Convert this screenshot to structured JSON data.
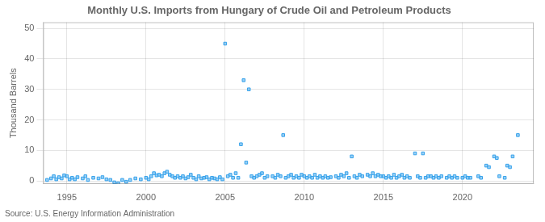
{
  "chart_data": {
    "type": "scatter",
    "title": "Monthly U.S. Imports from Hungary of Crude Oil and Petroleum Products",
    "ylabel": "Thousand Barrels",
    "annotations": [
      "Source: U.S. Energy Information Administration"
    ],
    "marker": "square",
    "grid": true,
    "legend": false,
    "xlim": [
      1993.5,
      2024.5
    ],
    "ylim": [
      -1,
      52
    ],
    "xticks": [
      1995,
      2000,
      2005,
      2010,
      2015,
      2020
    ],
    "yticks": [
      0,
      10,
      20,
      30,
      40,
      50
    ],
    "x": [
      1993.75,
      1994.0,
      1994.17,
      1994.33,
      1994.5,
      1994.67,
      1994.83,
      1995.0,
      1995.17,
      1995.33,
      1995.5,
      1995.67,
      1996.0,
      1996.17,
      1996.33,
      1996.67,
      1997.0,
      1997.25,
      1997.5,
      1997.75,
      1998.0,
      1998.25,
      1998.5,
      1998.75,
      1999.0,
      1999.33,
      1999.67,
      2000.0,
      2000.17,
      2000.33,
      2000.5,
      2000.67,
      2000.83,
      2001.0,
      2001.17,
      2001.33,
      2001.5,
      2001.67,
      2001.83,
      2002.0,
      2002.17,
      2002.33,
      2002.5,
      2002.67,
      2002.83,
      2003.0,
      2003.17,
      2003.33,
      2003.5,
      2003.67,
      2003.83,
      2004.0,
      2004.17,
      2004.33,
      2004.5,
      2004.67,
      2004.83,
      2005.0,
      2005.17,
      2005.33,
      2005.5,
      2005.67,
      2005.83,
      2006.0,
      2006.17,
      2006.33,
      2006.5,
      2006.67,
      2006.83,
      2007.0,
      2007.17,
      2007.33,
      2007.5,
      2007.67,
      2008.0,
      2008.17,
      2008.33,
      2008.5,
      2008.67,
      2008.83,
      2009.0,
      2009.17,
      2009.33,
      2009.5,
      2009.67,
      2009.83,
      2010.0,
      2010.17,
      2010.33,
      2010.5,
      2010.67,
      2010.83,
      2011.0,
      2011.17,
      2011.33,
      2011.5,
      2011.67,
      2012.0,
      2012.17,
      2012.33,
      2012.5,
      2012.67,
      2012.83,
      2013.0,
      2013.17,
      2013.33,
      2013.5,
      2013.67,
      2014.0,
      2014.17,
      2014.33,
      2014.5,
      2014.67,
      2014.83,
      2015.0,
      2015.17,
      2015.33,
      2015.5,
      2015.67,
      2015.83,
      2016.0,
      2016.17,
      2016.33,
      2016.5,
      2016.67,
      2017.0,
      2017.17,
      2017.33,
      2017.5,
      2017.67,
      2017.83,
      2018.0,
      2018.17,
      2018.33,
      2018.5,
      2018.67,
      2019.0,
      2019.17,
      2019.33,
      2019.5,
      2019.67,
      2020.0,
      2020.17,
      2020.33,
      2020.5,
      2021.0,
      2021.17,
      2021.5,
      2021.67,
      2022.0,
      2022.17,
      2022.33,
      2022.67,
      2022.83,
      2023.0,
      2023.17,
      2023.5
    ],
    "values": [
      0.3,
      0.8,
      1.5,
      0.5,
      1.2,
      0.8,
      1.8,
      1.5,
      0.5,
      1.0,
      0.5,
      1.2,
      0.8,
      1.5,
      0.3,
      1.0,
      0.8,
      1.2,
      0.5,
      0.3,
      -0.5,
      -0.8,
      0.3,
      -0.3,
      0.3,
      0.8,
      0.5,
      1.0,
      0.5,
      1.5,
      2.5,
      1.8,
      2.0,
      1.5,
      2.5,
      3.0,
      2.0,
      1.5,
      1.0,
      1.5,
      1.0,
      1.5,
      0.8,
      1.2,
      2.0,
      1.0,
      0.5,
      1.5,
      0.8,
      1.0,
      1.2,
      0.5,
      1.0,
      0.8,
      0.5,
      1.2,
      0.5,
      45.0,
      1.5,
      2.0,
      1.0,
      2.5,
      1.0,
      12.0,
      33.0,
      6.0,
      30.0,
      1.5,
      1.0,
      1.5,
      2.0,
      2.5,
      1.0,
      1.5,
      1.5,
      1.0,
      2.0,
      1.5,
      15.0,
      1.0,
      1.5,
      2.0,
      1.0,
      1.5,
      1.0,
      2.0,
      1.5,
      1.0,
      1.5,
      1.0,
      2.0,
      1.0,
      1.5,
      1.0,
      1.5,
      1.0,
      1.2,
      1.5,
      1.0,
      2.0,
      1.5,
      2.5,
      1.0,
      8.0,
      1.5,
      1.0,
      2.0,
      1.5,
      2.0,
      1.5,
      2.5,
      1.5,
      2.0,
      1.5,
      1.5,
      1.0,
      1.5,
      1.0,
      2.0,
      1.0,
      1.5,
      2.0,
      1.0,
      1.5,
      1.0,
      9.0,
      1.5,
      1.0,
      9.0,
      1.0,
      1.5,
      1.5,
      1.0,
      1.5,
      1.0,
      1.5,
      1.0,
      1.5,
      1.0,
      1.5,
      1.0,
      1.0,
      1.5,
      1.0,
      1.0,
      1.5,
      1.0,
      5.0,
      4.5,
      8.0,
      7.5,
      1.5,
      1.0,
      5.0,
      4.5,
      8.0,
      15.0
    ]
  }
}
